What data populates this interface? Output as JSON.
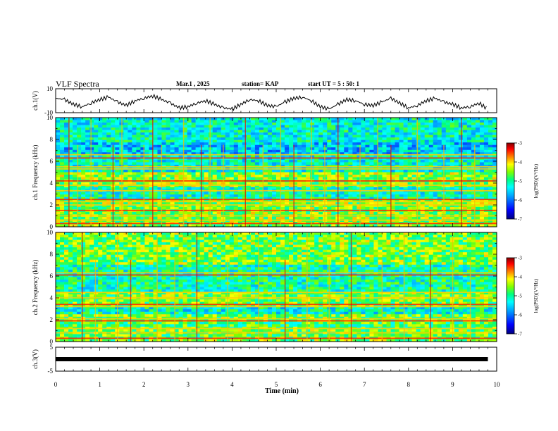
{
  "header": {
    "title": "VLF Spectra",
    "date": "Mar.1 , 2025",
    "station": "station= KAP",
    "start_ut": "start UT = 5 : 50: 1"
  },
  "colorbar": {
    "label": "log(PSD)(V²/Hz)",
    "ticks": [
      "-3",
      "-4",
      "-5",
      "-6",
      "-7"
    ],
    "range": [
      -7,
      -3
    ],
    "colors": [
      "#000080",
      "#0000ff",
      "#00a0ff",
      "#00ffff",
      "#00ff80",
      "#80ff00",
      "#ffff00",
      "#ff8000",
      "#ff0000",
      "#800000"
    ]
  },
  "chart_data": [
    {
      "type": "line",
      "ylabel": "ch.1(V)",
      "ylim": [
        -10,
        10
      ],
      "y_ticks": [
        "10",
        "-10"
      ],
      "xlim": [
        0,
        10
      ],
      "x": [
        0.0,
        0.2,
        0.4,
        0.6,
        0.8,
        1.0,
        1.2,
        1.4,
        1.6,
        1.8,
        2.0,
        2.2,
        2.4,
        2.6,
        2.8,
        3.0,
        3.2,
        3.4,
        3.6,
        3.8,
        4.0,
        4.2,
        4.4,
        4.6,
        4.8,
        5.0,
        5.2,
        5.4,
        5.6,
        5.8,
        6.0,
        6.2,
        6.4,
        6.6,
        6.8,
        7.0,
        7.2,
        7.4,
        7.6,
        7.8,
        8.0,
        8.2,
        8.4,
        8.6,
        8.8,
        9.0,
        9.2,
        9.4,
        9.6,
        9.8
      ],
      "y": [
        2,
        1,
        -3,
        -5,
        -2,
        1,
        3,
        -1,
        -4,
        0,
        2,
        4,
        1,
        -2,
        -6,
        -5,
        -2,
        0,
        -3,
        -6,
        -7,
        -3,
        1,
        0,
        -4,
        -5,
        -1,
        2,
        3,
        0,
        -5,
        -7,
        -3,
        1,
        0,
        -3,
        -4,
        -1,
        2,
        -2,
        -6,
        -4,
        0,
        2,
        -1,
        -3,
        -6,
        -5,
        -2,
        -7
      ]
    },
    {
      "type": "heatmap",
      "ylabel": "ch.1 Frequency (kHz)",
      "ylim": [
        0,
        10
      ],
      "y_ticks": [
        "0",
        "2",
        "4",
        "6",
        "8",
        "10"
      ],
      "xlim": [
        0,
        10
      ],
      "bands_khz": [
        0.3,
        0.6,
        1.0,
        1.5,
        2.0,
        2.3,
        2.5,
        3.3,
        3.8,
        4.2,
        5.3,
        5.5,
        6.3,
        6.6
      ],
      "spikes_min": [
        0.3,
        0.5,
        0.8,
        1.3,
        1.5,
        2.0,
        2.2,
        2.4,
        2.9,
        3.3,
        3.5,
        3.8,
        4.3,
        4.7,
        5.1,
        5.4,
        5.8,
        6.1,
        6.4,
        6.9,
        7.3,
        7.6,
        8.2,
        8.8,
        9.2,
        9.5
      ],
      "pattern": "broadband green/yellow with blue patches 5-10 kHz and 2.5-3.5 kHz"
    },
    {
      "type": "heatmap",
      "ylabel": "ch.2 Frequency (kHz)",
      "ylim": [
        0,
        10
      ],
      "y_ticks": [
        "0",
        "2",
        "4",
        "6",
        "8",
        "10"
      ],
      "xlim": [
        0,
        10
      ],
      "bands_khz": [
        0.3,
        0.8,
        1.2,
        1.9,
        2.1,
        3.2,
        3.4,
        4.0,
        4.5,
        6.1,
        6.3
      ],
      "spikes_min": [
        0.6,
        0.9,
        1.4,
        1.7,
        2.3,
        2.7,
        3.2,
        3.9,
        4.6,
        5.2,
        5.7,
        6.2,
        6.7,
        7.4,
        7.9,
        8.5,
        9.0,
        9.4
      ],
      "pattern": "green/yellow upper band 7-10 kHz, blue patches 2.5-3.2 kHz and 4.5-7 kHz"
    },
    {
      "type": "line",
      "ylabel": "ch.3(V)",
      "ylim": [
        -5,
        5
      ],
      "y_ticks": [
        "5",
        "-5"
      ],
      "xlim": [
        0,
        10
      ],
      "x": [
        0,
        9.8
      ],
      "y": [
        0,
        0
      ]
    }
  ],
  "x_axis": {
    "label": "Time (min)",
    "ticks": [
      "0",
      "1",
      "2",
      "3",
      "4",
      "5",
      "6",
      "7",
      "8",
      "9",
      "10"
    ]
  }
}
